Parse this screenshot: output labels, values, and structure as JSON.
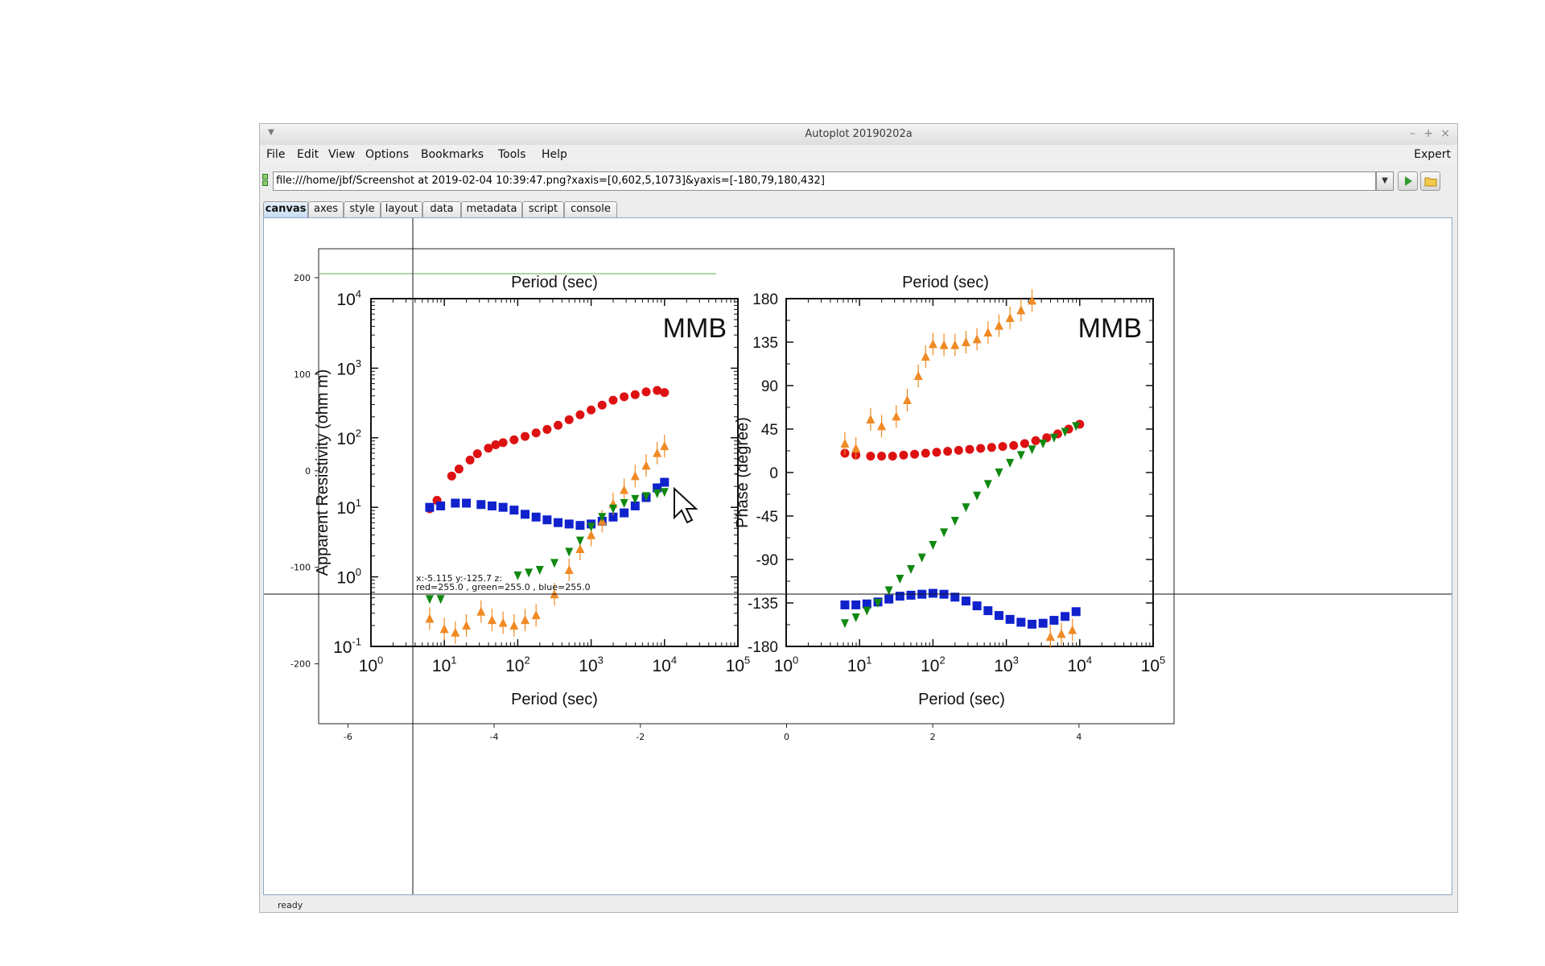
{
  "window": {
    "title": "Autoplot 20190202a",
    "controls": [
      "–",
      "+",
      "×"
    ]
  },
  "menu": {
    "items": [
      "File",
      "Edit",
      "View",
      "Options",
      "Bookmarks",
      "Tools",
      "Help"
    ],
    "expert": "Expert"
  },
  "url": {
    "value": "file:///home/jbf/Screenshot at 2019-02-04 10:39:47.png?xaxis=[0,602,5,1073]&yaxis=[-180,79,180,432]"
  },
  "tabs": [
    "canvas",
    "axes",
    "style",
    "layout",
    "data",
    "metadata",
    "script",
    "console"
  ],
  "status": "ready",
  "colors": {
    "accent": "#c9ddf3",
    "series_rho_xy": "#dd1111",
    "series_rho_yx": "#1022cc",
    "series_tipper_a": "#f08a24",
    "series_tipper_b": "#118811"
  },
  "readout": {
    "line1": "x:-5.115  y:-125.7  z:",
    "line2": "red=255.0 , green=255.0 , blue=255.0"
  },
  "chart_data": [
    {
      "type": "scatter",
      "name": "autoplot-axes",
      "xlim": [
        -6.4,
        5.3
      ],
      "ylim": [
        -262,
        230
      ],
      "x_ticks": [
        "-6",
        "-4",
        "-2",
        "0",
        "2",
        "4"
      ],
      "y_ticks": [
        "200",
        "100",
        "0",
        "-100",
        "-200"
      ]
    },
    {
      "type": "scatter",
      "name": "resistivity",
      "label": "MMB",
      "xlabel": "Period (sec)",
      "top_label": "Period (sec)",
      "ylabel": "Apparent Resistivity (ohm m)",
      "x_scale": "log",
      "y_scale": "log",
      "xlim_exp": [
        0,
        5
      ],
      "ylim_exp": [
        -1,
        4
      ],
      "x_ticks": [
        "10^0",
        "10^1",
        "10^2",
        "10^3",
        "10^4",
        "10^5"
      ],
      "y_ticks": [
        "10^4",
        "10^3",
        "10^2",
        "10^1",
        "10^0",
        "10^-1"
      ],
      "series": [
        {
          "color": "#dd1111",
          "marker": "circle",
          "points": [
            [
              0.8,
              0.98
            ],
            [
              0.9,
              1.1
            ],
            [
              1.1,
              1.45
            ],
            [
              1.2,
              1.55
            ],
            [
              1.35,
              1.68
            ],
            [
              1.45,
              1.77
            ],
            [
              1.6,
              1.85
            ],
            [
              1.7,
              1.9
            ],
            [
              1.8,
              1.93
            ],
            [
              1.95,
              1.97
            ],
            [
              2.1,
              2.02
            ],
            [
              2.25,
              2.07
            ],
            [
              2.4,
              2.12
            ],
            [
              2.55,
              2.18
            ],
            [
              2.7,
              2.26
            ],
            [
              2.85,
              2.33
            ],
            [
              3.0,
              2.4
            ],
            [
              3.15,
              2.47
            ],
            [
              3.3,
              2.54
            ],
            [
              3.45,
              2.59
            ],
            [
              3.6,
              2.62
            ],
            [
              3.75,
              2.66
            ],
            [
              3.9,
              2.68
            ],
            [
              4.0,
              2.65
            ]
          ]
        },
        {
          "color": "#1022cc",
          "marker": "square",
          "points": [
            [
              0.8,
              1.0
            ],
            [
              0.95,
              1.02
            ],
            [
              1.15,
              1.06
            ],
            [
              1.3,
              1.06
            ],
            [
              1.5,
              1.04
            ],
            [
              1.65,
              1.02
            ],
            [
              1.8,
              1.0
            ],
            [
              1.95,
              0.96
            ],
            [
              2.1,
              0.9
            ],
            [
              2.25,
              0.86
            ],
            [
              2.4,
              0.82
            ],
            [
              2.55,
              0.78
            ],
            [
              2.7,
              0.76
            ],
            [
              2.85,
              0.74
            ],
            [
              3.0,
              0.76
            ],
            [
              3.15,
              0.8
            ],
            [
              3.3,
              0.86
            ],
            [
              3.45,
              0.92
            ],
            [
              3.6,
              1.02
            ],
            [
              3.75,
              1.14
            ],
            [
              3.9,
              1.28
            ],
            [
              4.0,
              1.36
            ]
          ]
        },
        {
          "color": "#f08a24",
          "marker": "triangle",
          "points": [
            [
              0.8,
              -0.6
            ],
            [
              1.0,
              -0.75
            ],
            [
              1.15,
              -0.8
            ],
            [
              1.3,
              -0.7
            ],
            [
              1.5,
              -0.5
            ],
            [
              1.65,
              -0.62
            ],
            [
              1.8,
              -0.66
            ],
            [
              1.95,
              -0.7
            ],
            [
              2.1,
              -0.62
            ],
            [
              2.25,
              -0.55
            ],
            [
              2.5,
              -0.25
            ],
            [
              2.7,
              0.1
            ],
            [
              2.85,
              0.4
            ],
            [
              3.0,
              0.6
            ],
            [
              3.15,
              0.8
            ],
            [
              3.3,
              1.05
            ],
            [
              3.45,
              1.25
            ],
            [
              3.6,
              1.45
            ],
            [
              3.75,
              1.6
            ],
            [
              3.9,
              1.78
            ],
            [
              4.0,
              1.88
            ]
          ]
        },
        {
          "color": "#118811",
          "marker": "triangle-down",
          "points": [
            [
              0.8,
              -0.32
            ],
            [
              0.95,
              -0.32
            ],
            [
              2.0,
              0.02
            ],
            [
              2.15,
              0.06
            ],
            [
              2.3,
              0.1
            ],
            [
              2.5,
              0.2
            ],
            [
              2.7,
              0.36
            ],
            [
              2.85,
              0.52
            ],
            [
              3.0,
              0.72
            ],
            [
              3.15,
              0.86
            ],
            [
              3.3,
              0.98
            ],
            [
              3.45,
              1.06
            ],
            [
              3.6,
              1.12
            ],
            [
              3.75,
              1.16
            ],
            [
              3.9,
              1.2
            ],
            [
              4.0,
              1.22
            ]
          ]
        }
      ]
    },
    {
      "type": "scatter",
      "name": "phase",
      "label": "MMB",
      "xlabel": "Period (sec)",
      "top_label": "Period (sec)",
      "ylabel": "Phase (degree)",
      "x_scale": "log",
      "xlim_exp": [
        0,
        5
      ],
      "ylim": [
        -180,
        180
      ],
      "x_ticks": [
        "10^0",
        "10^1",
        "10^2",
        "10^3",
        "10^4",
        "10^5"
      ],
      "y_ticks": [
        "180",
        "135",
        "90",
        "45",
        "0",
        "-45",
        "-90",
        "-135",
        "-180"
      ],
      "series": [
        {
          "color": "#dd1111",
          "marker": "circle",
          "points": [
            [
              0.8,
              20
            ],
            [
              0.95,
              18
            ],
            [
              1.15,
              17
            ],
            [
              1.3,
              17
            ],
            [
              1.45,
              17
            ],
            [
              1.6,
              18
            ],
            [
              1.75,
              19
            ],
            [
              1.9,
              20
            ],
            [
              2.05,
              21
            ],
            [
              2.2,
              22
            ],
            [
              2.35,
              23
            ],
            [
              2.5,
              24
            ],
            [
              2.65,
              25
            ],
            [
              2.8,
              26
            ],
            [
              2.95,
              27
            ],
            [
              3.1,
              28
            ],
            [
              3.25,
              30
            ],
            [
              3.4,
              33
            ],
            [
              3.55,
              36
            ],
            [
              3.7,
              40
            ],
            [
              3.85,
              45
            ],
            [
              4.0,
              50
            ]
          ]
        },
        {
          "color": "#1022cc",
          "marker": "square",
          "points": [
            [
              0.8,
              -137
            ],
            [
              0.95,
              -137
            ],
            [
              1.1,
              -136
            ],
            [
              1.25,
              -134
            ],
            [
              1.4,
              -131
            ],
            [
              1.55,
              -128
            ],
            [
              1.7,
              -127
            ],
            [
              1.85,
              -126
            ],
            [
              2.0,
              -125
            ],
            [
              2.15,
              -126
            ],
            [
              2.3,
              -129
            ],
            [
              2.45,
              -133
            ],
            [
              2.6,
              -138
            ],
            [
              2.75,
              -143
            ],
            [
              2.9,
              -148
            ],
            [
              3.05,
              -152
            ],
            [
              3.2,
              -155
            ],
            [
              3.35,
              -157
            ],
            [
              3.5,
              -156
            ],
            [
              3.65,
              -153
            ],
            [
              3.8,
              -149
            ],
            [
              3.95,
              -144
            ]
          ]
        },
        {
          "color": "#f08a24",
          "marker": "triangle",
          "points": [
            [
              0.8,
              30
            ],
            [
              0.95,
              25
            ],
            [
              1.15,
              55
            ],
            [
              1.3,
              48
            ],
            [
              1.5,
              58
            ],
            [
              1.65,
              75
            ],
            [
              1.8,
              100
            ],
            [
              1.9,
              120
            ],
            [
              2.0,
              133
            ],
            [
              2.15,
              132
            ],
            [
              2.3,
              132
            ],
            [
              2.45,
              135
            ],
            [
              2.6,
              138
            ],
            [
              2.75,
              145
            ],
            [
              2.9,
              152
            ],
            [
              3.05,
              160
            ],
            [
              3.2,
              168
            ],
            [
              3.35,
              178
            ],
            [
              3.6,
              -170
            ],
            [
              3.75,
              -167
            ],
            [
              3.9,
              -163
            ]
          ]
        },
        {
          "color": "#118811",
          "marker": "triangle-down",
          "points": [
            [
              0.8,
              -156
            ],
            [
              0.95,
              -150
            ],
            [
              1.1,
              -143
            ],
            [
              1.25,
              -135
            ],
            [
              1.4,
              -122
            ],
            [
              1.55,
              -110
            ],
            [
              1.7,
              -100
            ],
            [
              1.85,
              -88
            ],
            [
              2.0,
              -75
            ],
            [
              2.15,
              -62
            ],
            [
              2.3,
              -50
            ],
            [
              2.45,
              -36
            ],
            [
              2.6,
              -24
            ],
            [
              2.75,
              -12
            ],
            [
              2.9,
              0
            ],
            [
              3.05,
              10
            ],
            [
              3.2,
              18
            ],
            [
              3.35,
              24
            ],
            [
              3.5,
              30
            ],
            [
              3.65,
              36
            ],
            [
              3.8,
              42
            ],
            [
              3.95,
              48
            ]
          ]
        }
      ]
    }
  ]
}
